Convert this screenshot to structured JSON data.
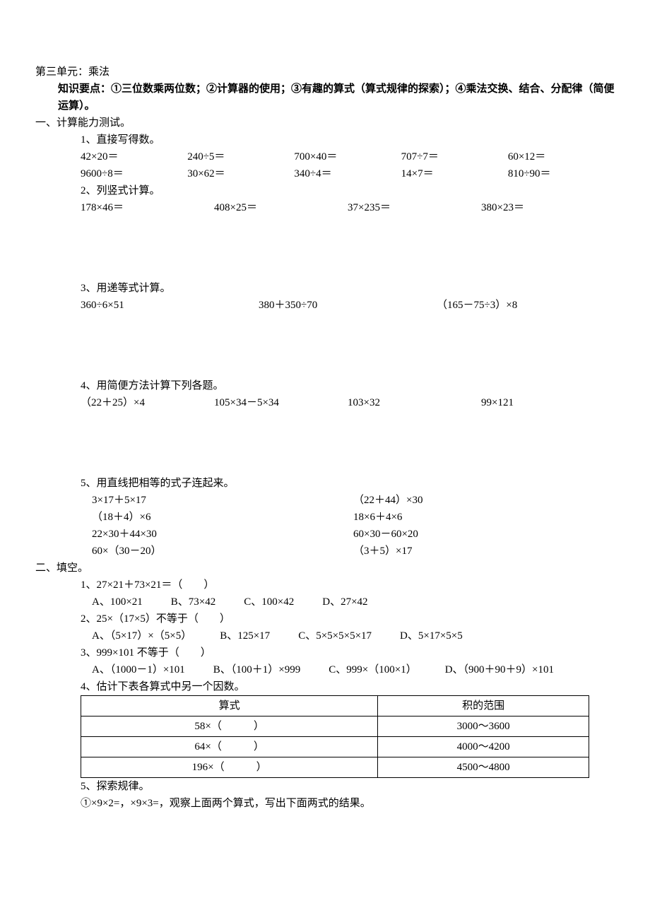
{
  "unit_title": "第三单元：乘法",
  "knowledge_label": "知识要点：①三位数乘两位数；②计算器的使用；③有趣的算式（算式规律的探索）；④乘法交换、结合、分配律（简便运算）。",
  "s1": {
    "title": "一、计算能力测试。",
    "q1": {
      "title": "1、直接写得数。",
      "r1": [
        "42×20＝",
        "240÷5＝",
        "700×40＝",
        "707÷7＝",
        "60×12＝"
      ],
      "r2": [
        "9600÷8＝",
        "30×62＝",
        "340÷4＝",
        "14×7＝",
        "810÷90＝"
      ]
    },
    "q2": {
      "title": "2、列竖式计算。",
      "r1": [
        "178×46＝",
        "408×25＝",
        "37×235＝",
        "380×23＝"
      ]
    },
    "q3": {
      "title": "3、用递等式计算。",
      "r1": [
        "360÷6×51",
        "380＋350÷70",
        "（165－75÷3）×8"
      ]
    },
    "q4": {
      "title": "4、用简便方法计算下列各题。",
      "r1": [
        "（22＋25）×4",
        "105×34－5×34",
        "103×32",
        "99×121"
      ]
    },
    "q5": {
      "title": "5、用直线把相等的式子连起来。",
      "left": [
        "3×17＋5×17",
        "（18＋4）×6",
        "22×30＋44×30",
        "60×（30－20）"
      ],
      "right": [
        "（22＋44）×30",
        "18×6＋4×6",
        "60×30－60×20",
        "（3＋5）×17"
      ]
    }
  },
  "s2": {
    "title": "二、填空。",
    "q1": {
      "stem": "1、27×21＋73×21＝（　　）",
      "opts": [
        "A、100×21",
        "B、73×42",
        "C、100×42",
        "D、27×42"
      ]
    },
    "q2": {
      "stem": "2、25×（17×5）不等于（　　）",
      "opts": [
        "A、（5×17）×（5×5）",
        "B、125×17",
        "C、5×5×5×5×17",
        "D、5×17×5×5"
      ]
    },
    "q3": {
      "stem": "3、999×101 不等于（　　）",
      "opts": [
        "A、（1000－1）×101",
        "B、（100＋1）×999",
        "C、999×（100×1）",
        "D、（900＋90＋9）×101"
      ]
    },
    "q4": {
      "title": "4、估计下表各算式中另一个因数。",
      "head": [
        "算式",
        "积的范围"
      ],
      "rows": [
        [
          "58×（　　　）",
          "3000～3600"
        ],
        [
          "64×（　　　）",
          "4000～4200"
        ],
        [
          "196×（　　　）",
          "4500～4800"
        ]
      ]
    },
    "q5": {
      "title": "5、探索规律。",
      "line": "①×9×2=，×9×3=，观察上面两个算式，写出下面两式的结果。"
    }
  }
}
